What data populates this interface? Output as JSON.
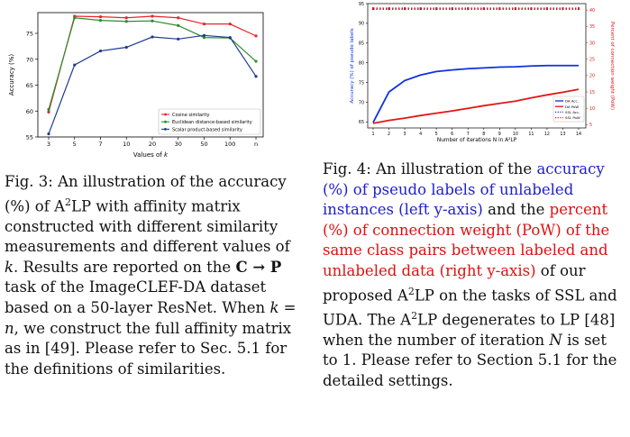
{
  "figure1": {
    "chart_data": {
      "type": "line",
      "xlabel": "Values of k",
      "ylabel": "Accuracy (%)",
      "categories": [
        "3",
        "5",
        "7",
        "10",
        "20",
        "30",
        "50",
        "100",
        "n"
      ],
      "yticks": [
        55,
        60,
        65,
        70,
        75
      ],
      "ylim": [
        55,
        79
      ],
      "grid": false,
      "legend_position": "lower-right",
      "series": [
        {
          "name": "Cosine similarity",
          "color": "#e8262a",
          "values": [
            59.8,
            78.3,
            78.2,
            78.0,
            78.3,
            78.0,
            76.8,
            76.8,
            74.5
          ]
        },
        {
          "name": "Euclidean distance-based similarity",
          "color": "#2e8b2e",
          "values": [
            60.3,
            78.0,
            77.5,
            77.3,
            77.4,
            76.5,
            74.2,
            74.1,
            69.6
          ]
        },
        {
          "name": "Scalar product-based similarity",
          "color": "#1f3a8f",
          "values": [
            55.6,
            68.9,
            71.6,
            72.3,
            74.3,
            73.9,
            74.6,
            74.2,
            66.7
          ]
        }
      ]
    }
  },
  "figure2": {
    "chart_data": {
      "type": "line",
      "xlabel": "Number of iterations N in A²LP",
      "ylabel_left": "Accuracy (%) of pseudo labels",
      "ylabel_right": "Percent of connection weight (PoW)",
      "x": [
        1,
        2,
        3,
        4,
        5,
        6,
        7,
        8,
        9,
        10,
        11,
        12,
        13,
        14
      ],
      "yticks_left": [
        65,
        70,
        75,
        80,
        85,
        90,
        95
      ],
      "ylim_left": [
        63.5,
        95
      ],
      "yticks_right": [
        5,
        10,
        15,
        20,
        25,
        30,
        35,
        40
      ],
      "ylim_right": [
        4,
        42
      ],
      "legend_position": "lower-right",
      "series": [
        {
          "name": "DA Acc.",
          "axis": "left",
          "color": "#1030e0",
          "style": "solid",
          "values": [
            64.9,
            72.6,
            75.5,
            76.9,
            77.8,
            78.2,
            78.5,
            78.7,
            78.9,
            79.0,
            79.2,
            79.3,
            79.3,
            79.3
          ]
        },
        {
          "name": "DA PoW",
          "axis": "right",
          "color": "#e01818",
          "style": "solid",
          "values": [
            5.4,
            6.3,
            7.0,
            7.8,
            8.5,
            9.2,
            10.0,
            10.8,
            11.5,
            12.2,
            13.2,
            14.1,
            14.9,
            15.8
          ]
        },
        {
          "name": "SSL Acc.",
          "axis": "left",
          "color": "#2b2bd8",
          "style": "dotted",
          "values": [
            93.6,
            93.6,
            93.6,
            93.6,
            93.6,
            93.6,
            93.6,
            93.6,
            93.6,
            93.6,
            93.6,
            93.6,
            93.6,
            93.6
          ]
        },
        {
          "name": "SSL PoW",
          "axis": "right",
          "color": "#e01818",
          "style": "dotted",
          "values": [
            40.6,
            40.6,
            40.6,
            40.6,
            40.6,
            40.6,
            40.6,
            40.6,
            40.6,
            40.6,
            40.6,
            40.6,
            40.6,
            40.6
          ]
        }
      ]
    }
  },
  "caption1": {
    "label": "Fig. 3:",
    "t1": " An illustration of the accuracy (%) of A",
    "sup": "2",
    "t2": "LP with affinity matrix constructed with different similarity measurements and different values of ",
    "k1": "k",
    "t3": ". Results are reported on the ",
    "task": "C → P",
    "t4": " task of the ImageCLEF-DA dataset based on a 50-layer ResNet. When ",
    "k2": "k",
    "eq": " = ",
    "n": "n",
    "t5": ", we construct the full affinity matrix as in [49]. Please refer to Sec. 5.1 for the definitions of similarities."
  },
  "caption2": {
    "label": "Fig. 4:",
    "t1": " An illustration of the ",
    "blue": "accuracy (%) of pseudo labels of unlabeled instances (left y-axis)",
    "t2": " and the ",
    "red": "percent (%) of connection weight (PoW) of the same class pairs between labeled and unlabeled data (right y-axis)",
    "t3": " of our proposed A",
    "sup1": "2",
    "t4": "LP on the tasks of SSL and UDA. The A",
    "sup2": "2",
    "t5": "LP degenerates to LP [48] when the number of iteration ",
    "N": "N",
    "t6": " is set to 1. Please refer to Section 5.1 for the detailed settings."
  }
}
